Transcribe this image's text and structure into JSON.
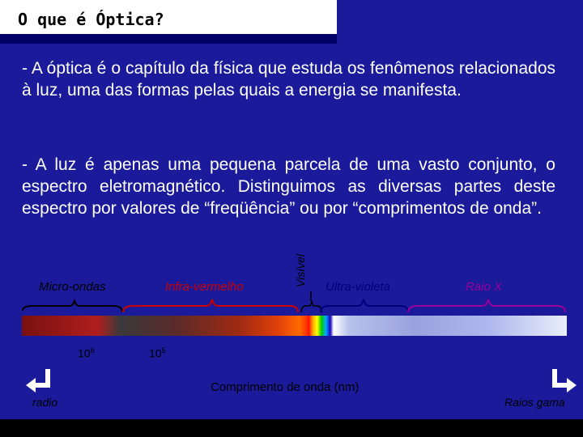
{
  "header": {
    "title": "O que é Óptica?"
  },
  "paragraphs": [
    "- A óptica é o capítulo da física que estuda os fenômenos relacionados à luz, uma das formas pelas quais a energia se manifesta.",
    "- A luz é apenas uma pequena parcela de uma vasto conjunto, o espectro eletromagnético. Distinguimos as diversas partes deste espectro por valores de “freqüência” ou por “comprimentos de onda”."
  ],
  "diagram": {
    "bands": {
      "micro": "Micro-ondas",
      "infra": "Infra-vermelho",
      "visivel": "Visível",
      "ultra": "Ultra-violeta",
      "raiox": "Raio X"
    },
    "ticks": [
      {
        "base": "10",
        "exp": "6"
      },
      {
        "base": "10",
        "exp": "5"
      }
    ],
    "axis_label": "Comprimento de onda (nm)",
    "left_end": "radio",
    "right_end": "Raios gama",
    "colors": {
      "micro": "#000000",
      "infra": "#cc0000",
      "ultra": "#00007a",
      "raiox": "#990099"
    }
  }
}
